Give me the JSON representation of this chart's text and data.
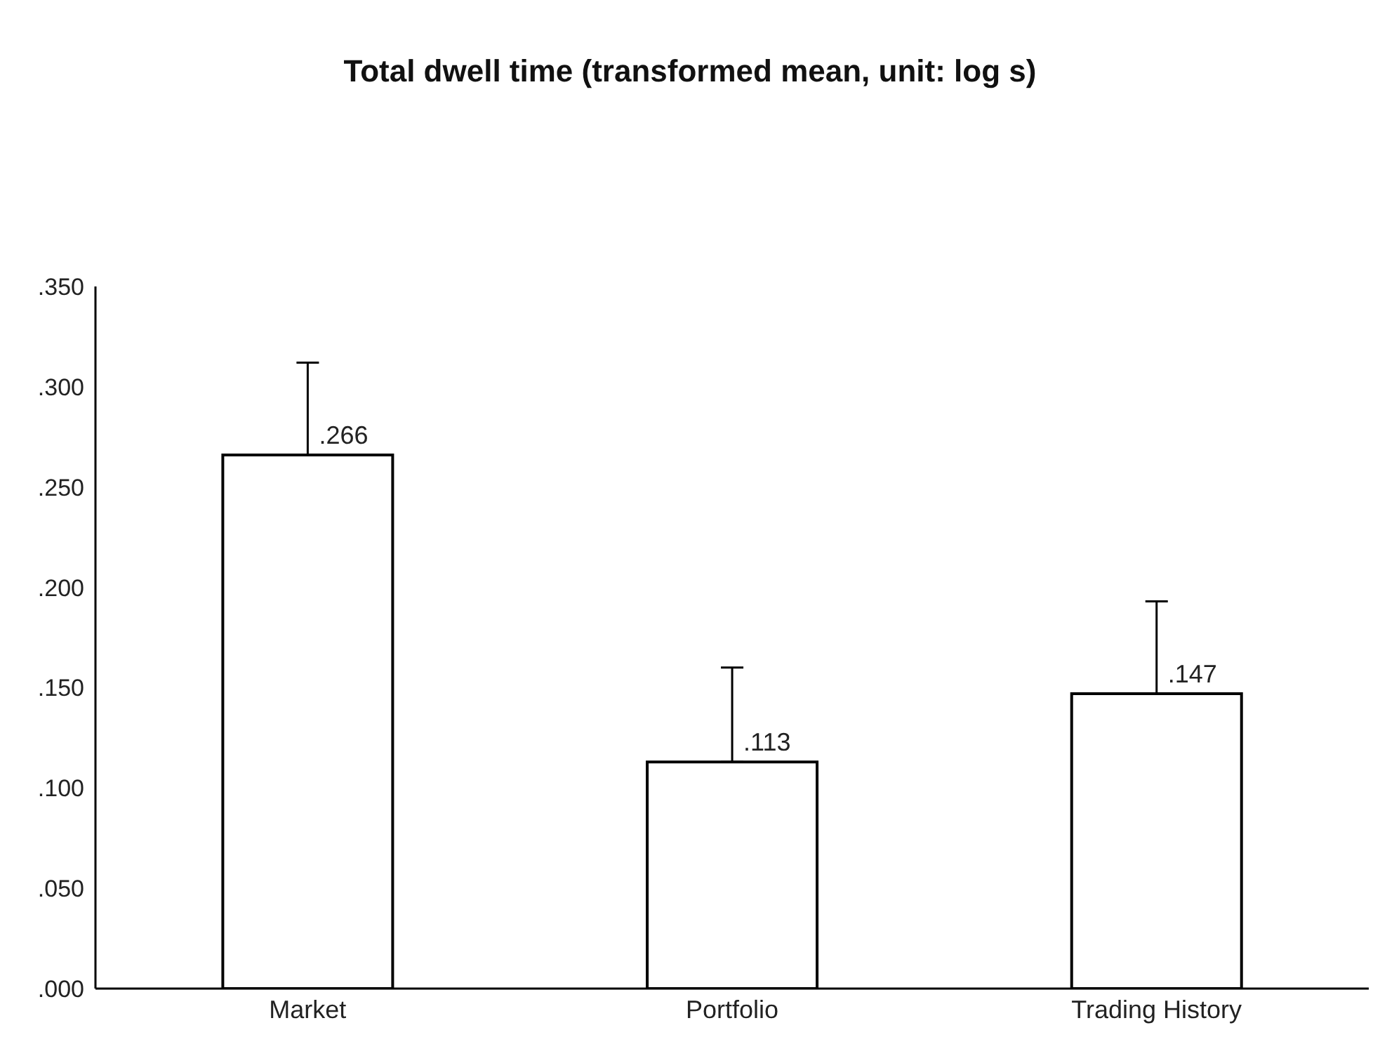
{
  "chart_data": {
    "type": "bar",
    "title": "Total dwell time (transformed mean, unit: log s)",
    "categories": [
      "Market",
      "Portfolio",
      "Trading History"
    ],
    "series": [
      {
        "color": "#ffffff",
        "values": [
          0.266,
          0.113,
          0.147
        ],
        "errors": [
          [
            0.266,
            0.312
          ],
          [
            0.113,
            0.16
          ],
          [
            0.147,
            0.193
          ]
        ],
        "value_labels": [
          ".266",
          ".113",
          ".147"
        ]
      }
    ],
    "ylim": [
      0,
      0.35
    ],
    "yticks": [
      {
        "value": 0,
        "label": ".000"
      },
      {
        "value": 0.05,
        "label": ".050"
      },
      {
        "value": 0.1,
        "label": ".100"
      },
      {
        "value": 0.15,
        "label": ".150"
      },
      {
        "value": 0.2,
        "label": ".200"
      },
      {
        "value": 0.25,
        "label": ".250"
      },
      {
        "value": 0.3,
        "label": ".300"
      },
      {
        "value": 0.35,
        "label": ".350"
      }
    ],
    "grid": false,
    "legend": false
  }
}
